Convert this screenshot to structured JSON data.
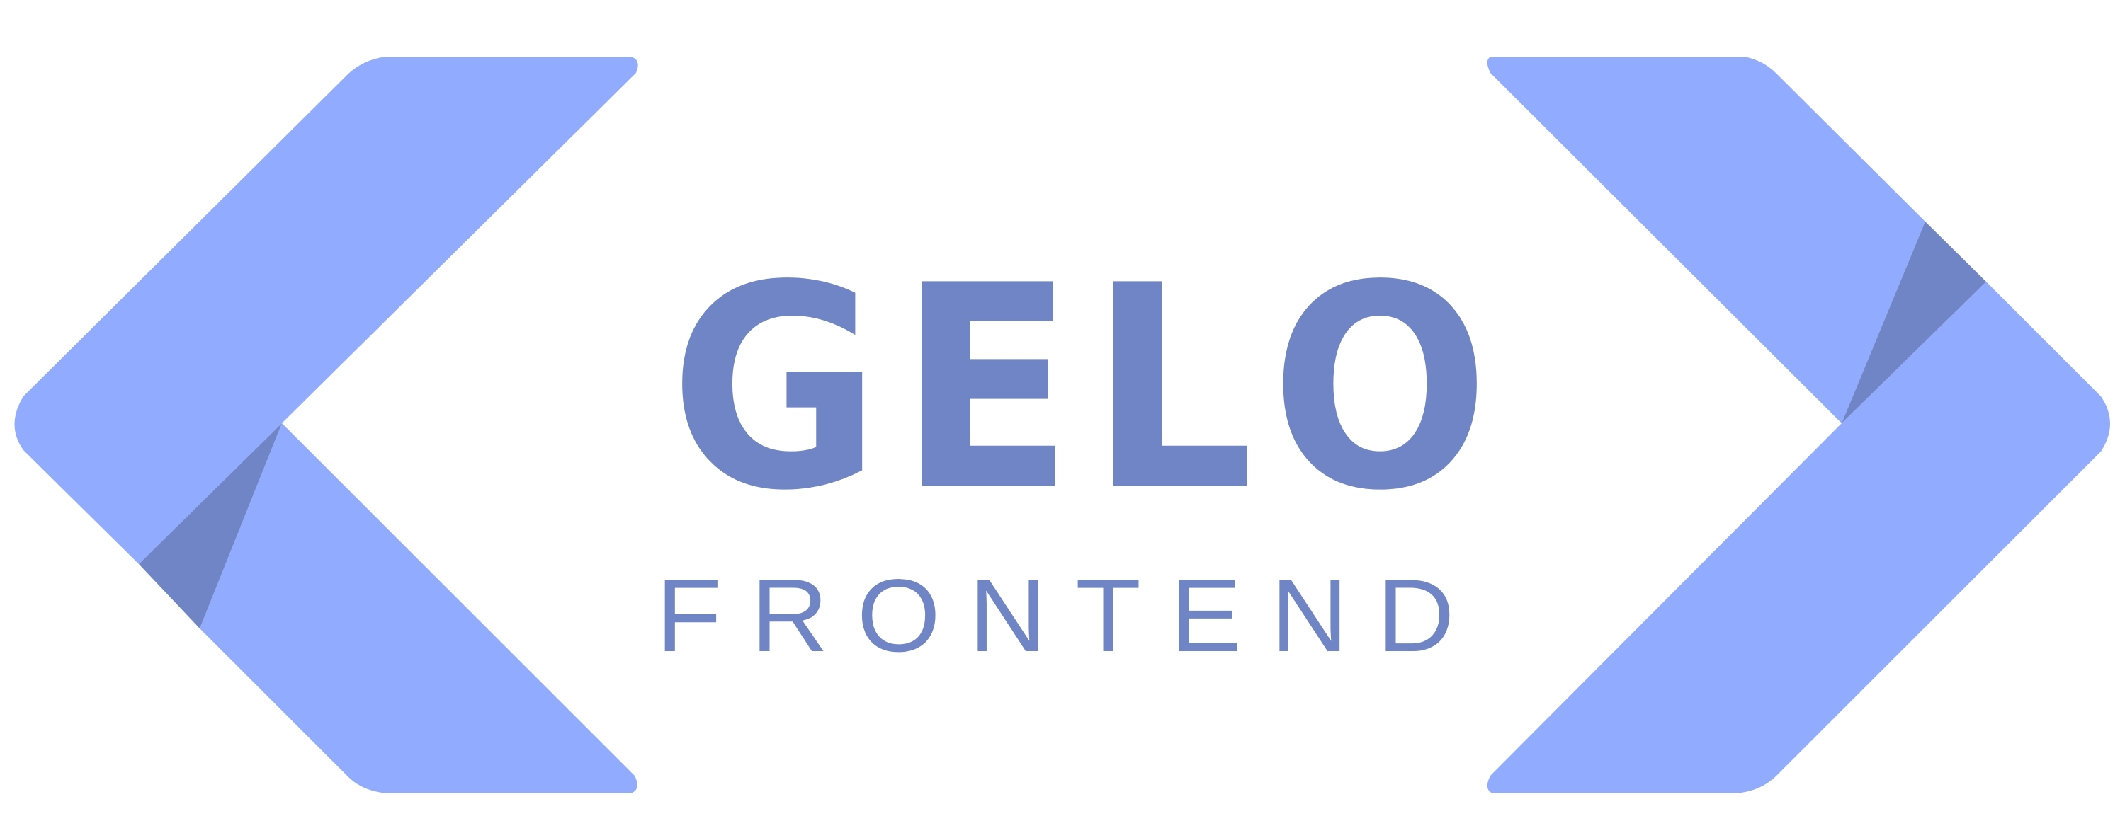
{
  "logo": {
    "wordmark": [
      "G",
      "E",
      "L",
      "O"
    ],
    "subtitle": [
      "F",
      "R",
      "O",
      "N",
      "T",
      "E",
      "N",
      "D"
    ],
    "colors": {
      "bracket": "#91abff",
      "shadow": "#7085c6",
      "text": "#7085c6",
      "background": "#ffffff"
    },
    "shapes": [
      "left-angle-bracket",
      "right-angle-bracket"
    ]
  }
}
